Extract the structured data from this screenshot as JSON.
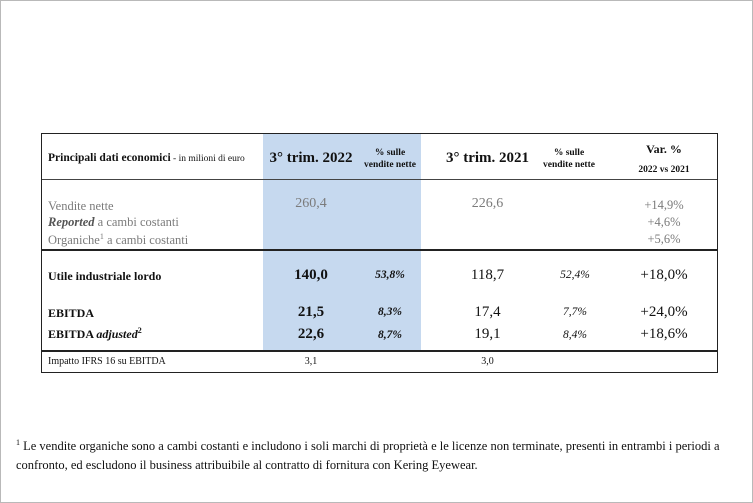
{
  "table": {
    "header": {
      "title": "Principali dati economici",
      "subtitle": " - in milioni di euro",
      "col_q3_2022": "3° trim. 2022",
      "col_pct_2022_line1": "% sulle",
      "col_pct_2022_line2": "vendite nette",
      "col_q3_2021": "3° trim. 2021",
      "col_pct_2021_line1": "% sulle",
      "col_pct_2021_line2": "vendite nette",
      "col_var_line1": "Var. %",
      "col_var_line2": "2022 vs 2021"
    },
    "sales": {
      "vendite_label": "Vendite nette",
      "vendite_2022": "260,4",
      "vendite_2021": "226,6",
      "vendite_var": "+14,9%",
      "reported_label_italic": "Reported",
      "reported_label_rest": " a cambi costanti",
      "reported_var": "+4,6%",
      "organiche_label": "Organiche",
      "organiche_sup": "1",
      "organiche_label_rest": " a cambi costanti",
      "organiche_var": "+5,6%"
    },
    "rows": [
      {
        "label": "Utile industriale lordo",
        "v2022": "140,0",
        "p2022": "53,8%",
        "v2021": "118,7",
        "p2021": "52,4%",
        "var": "+18,0%"
      },
      {
        "label": "EBITDA",
        "v2022": "21,5",
        "p2022": "8,3%",
        "v2021": "17,4",
        "p2021": "7,7%",
        "var": "+24,0%"
      },
      {
        "label": "EBITDA ",
        "label_italic": "adjusted",
        "sup": "2",
        "v2022": "22,6",
        "p2022": "8,7%",
        "v2021": "19,1",
        "p2021": "8,4%",
        "var": "+18,6%"
      }
    ],
    "ifrs": {
      "label": "Impatto IFRS 16 su EBITDA",
      "v2022": "3,1",
      "v2021": "3,0"
    }
  },
  "footnote": {
    "marker": "1",
    "text": "Le vendite organiche sono a cambi costanti e includono i soli marchi di proprietà e le licenze non terminate, presenti in entrambi i periodi a confronto, ed escludono il business attribuibile al contratto di fornitura con Kering Eyewear."
  }
}
